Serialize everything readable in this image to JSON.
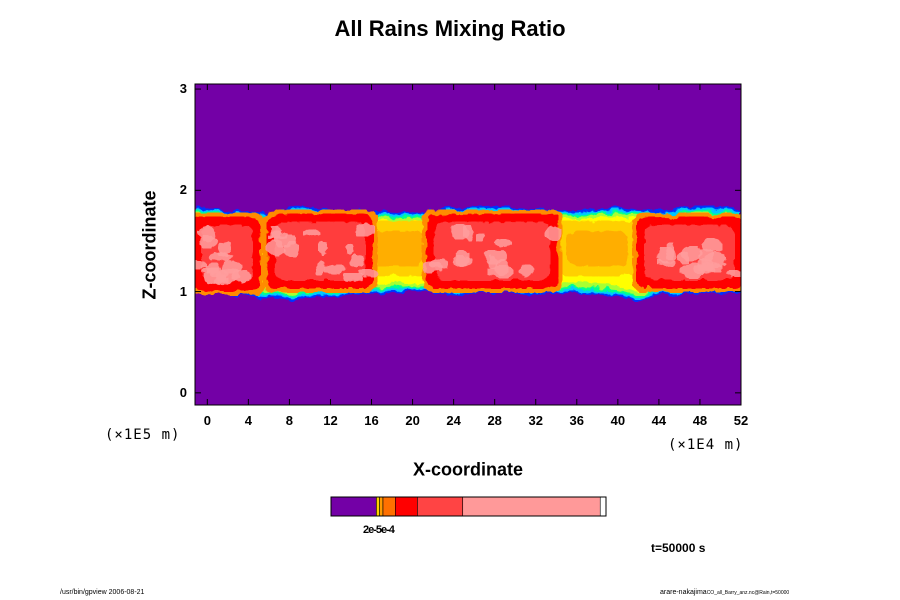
{
  "chart_data": {
    "type": "heatmap",
    "title": "All Rains Mixing Ratio",
    "xlabel": "X-coordinate",
    "ylabel": "Z-coordinate",
    "x_unit": "(×1E4 m)",
    "y_unit": "(×1E5 m)",
    "xlim": [
      -1.2,
      52
    ],
    "ylim": [
      -0.12,
      3.05
    ],
    "x_ticks": [
      "0",
      "4",
      "8",
      "12",
      "16",
      "20",
      "24",
      "28",
      "32",
      "36",
      "40",
      "44",
      "48",
      "52"
    ],
    "y_ticks": [
      "0",
      "1",
      "2",
      "3"
    ],
    "background_color": "#7300a6",
    "rain_layer": {
      "bottom_edge": [
        [
          -1.2,
          0.98
        ],
        [
          4,
          0.95
        ],
        [
          8,
          0.92
        ],
        [
          12,
          0.96
        ],
        [
          16,
          0.98
        ],
        [
          20,
          1.0
        ],
        [
          24,
          0.97
        ],
        [
          28,
          0.99
        ],
        [
          32,
          0.97
        ],
        [
          36,
          0.99
        ],
        [
          40,
          0.96
        ],
        [
          42,
          0.9
        ],
        [
          44,
          0.96
        ],
        [
          48,
          0.98
        ],
        [
          52,
          0.97
        ]
      ],
      "top_edge": [
        [
          -1.2,
          1.85
        ],
        [
          2,
          1.8
        ],
        [
          6,
          1.78
        ],
        [
          8,
          1.82
        ],
        [
          10,
          1.84
        ],
        [
          12,
          1.81
        ],
        [
          16,
          1.8
        ],
        [
          20,
          1.77
        ],
        [
          24,
          1.83
        ],
        [
          28,
          1.85
        ],
        [
          32,
          1.82
        ],
        [
          36,
          1.8
        ],
        [
          40,
          1.83
        ],
        [
          44,
          1.8
        ],
        [
          48,
          1.85
        ],
        [
          52,
          1.82
        ]
      ],
      "intense_cores": [
        {
          "x": [
            -1.2,
            5
          ],
          "z": [
            1.02,
            1.72
          ]
        },
        {
          "x": [
            6,
            16
          ],
          "z": [
            1.05,
            1.75
          ]
        },
        {
          "x": [
            21.5,
            34
          ],
          "z": [
            1.05,
            1.75
          ]
        },
        {
          "x": [
            42,
            52
          ],
          "z": [
            1.05,
            1.72
          ]
        }
      ],
      "moderate_zones": [
        {
          "x": [
            15,
            22
          ],
          "z": [
            1.15,
            1.7
          ]
        },
        {
          "x": [
            34,
            42
          ],
          "z": [
            1.15,
            1.7
          ]
        }
      ]
    },
    "colorbar": {
      "colors": [
        "#7300a6",
        "#ffd000",
        "#ff9900",
        "#ff7000",
        "#ff0000",
        "#ff4444",
        "#ff9999"
      ],
      "fractions": [
        0.165,
        0.012,
        0.012,
        0.045,
        0.08,
        0.165,
        0.5
      ],
      "tick_label": "2e-5e-4"
    },
    "time_label": "t=50000 s"
  },
  "footer": {
    "left": "/usr/bin/gpview 2006-08-21",
    "right": "arare-nakajima",
    "right_sub": "CO_all_Barry_anz.nc@Rain,t=50000"
  }
}
